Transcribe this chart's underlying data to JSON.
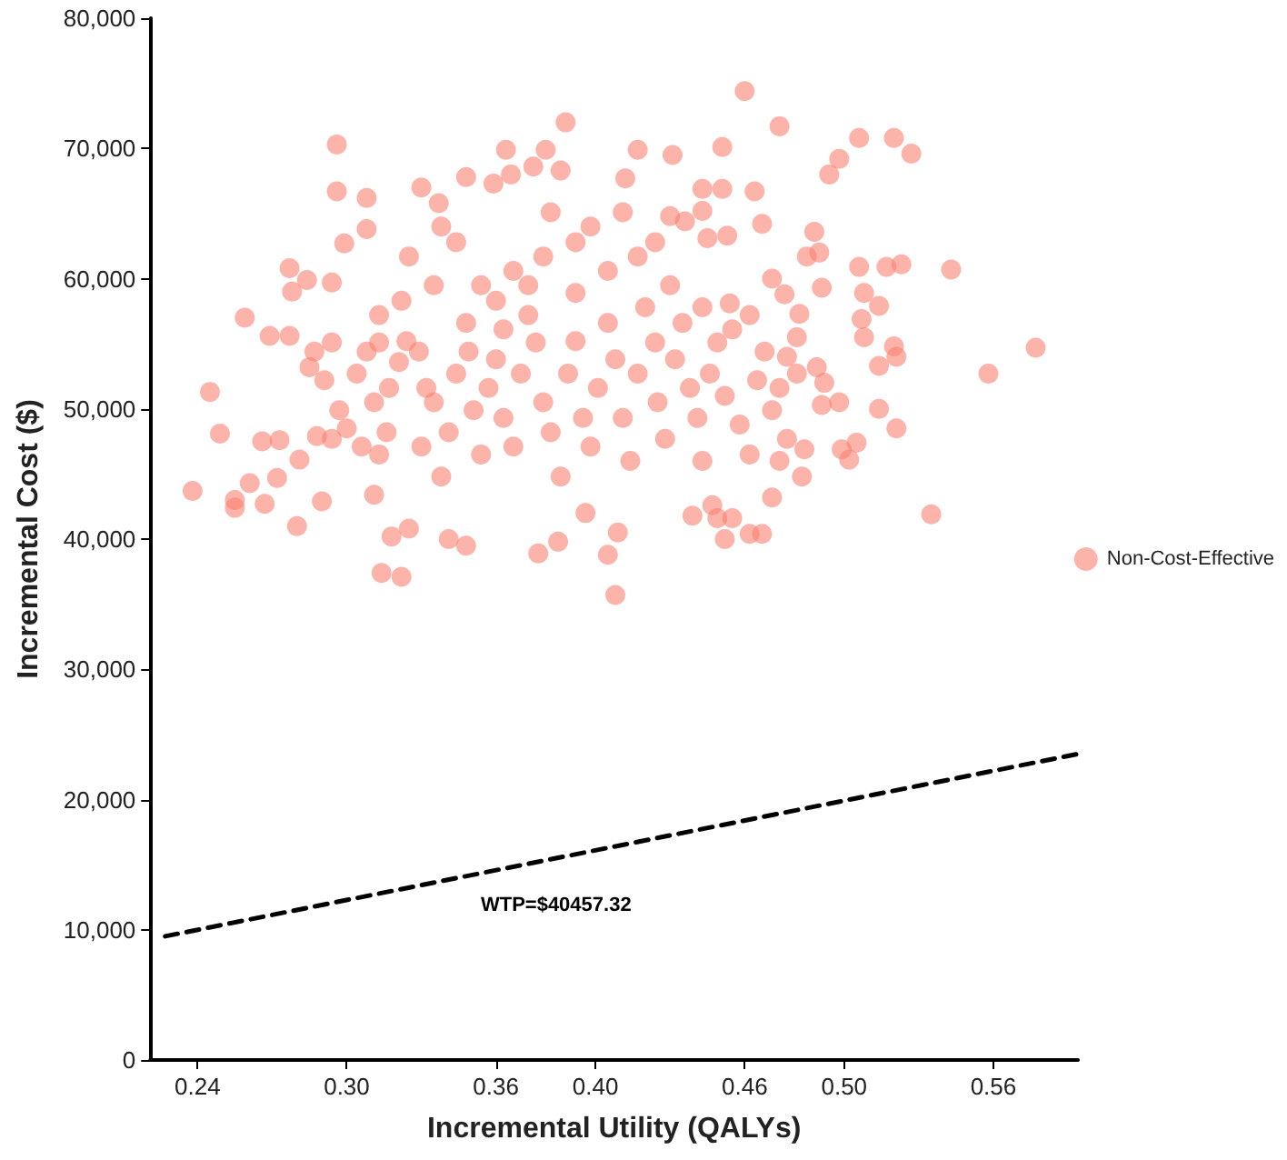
{
  "chart_data": {
    "type": "scatter",
    "xlabel": "Incremental Utility (QALYs)",
    "ylabel": "Incremental Cost ($)",
    "xlim": [
      0.221,
      0.594
    ],
    "ylim": [
      0,
      80000
    ],
    "xticks": [
      {
        "value": 0.24,
        "label": "0.24"
      },
      {
        "value": 0.3,
        "label": "0.30"
      },
      {
        "value": 0.36,
        "label": "0.36"
      },
      {
        "value": 0.4,
        "label": "0.40"
      },
      {
        "value": 0.46,
        "label": "0.46"
      },
      {
        "value": 0.5,
        "label": "0.50"
      },
      {
        "value": 0.56,
        "label": "0.56"
      }
    ],
    "yticks": [
      {
        "value": 0,
        "label": "0"
      },
      {
        "value": 10000,
        "label": "10,000"
      },
      {
        "value": 20000,
        "label": "20,000"
      },
      {
        "value": 30000,
        "label": "30,000"
      },
      {
        "value": 40000,
        "label": "40,000"
      },
      {
        "value": 50000,
        "label": "50,000"
      },
      {
        "value": 60000,
        "label": "60,000"
      },
      {
        "value": 70000,
        "label": "70,000"
      },
      {
        "value": 80000,
        "label": "80,000"
      }
    ],
    "grid": false,
    "legend": "right",
    "marker": "circle",
    "annotations": [
      "WTP=$40457.32"
    ],
    "series": [
      {
        "name": "Non-Cost-Effective",
        "color": "#fa8072",
        "x": [
          0.238,
          0.245,
          0.249,
          0.255,
          0.255,
          0.259,
          0.261,
          0.267,
          0.266,
          0.269,
          0.272,
          0.273,
          0.277,
          0.277,
          0.278,
          0.28,
          0.281,
          0.284,
          0.288,
          0.29,
          0.294,
          0.296,
          0.296,
          0.299,
          0.308,
          0.308,
          0.314,
          0.322,
          0.318,
          0.325,
          0.33,
          0.337,
          0.341,
          0.348,
          0.348,
          0.359,
          0.364,
          0.366,
          0.375,
          0.38,
          0.386,
          0.388,
          0.377,
          0.385,
          0.396,
          0.405,
          0.408,
          0.409,
          0.412,
          0.417,
          0.431,
          0.451,
          0.46,
          0.474,
          0.464,
          0.494,
          0.498,
          0.506,
          0.52,
          0.527,
          0.543,
          0.523,
          0.517,
          0.506,
          0.508,
          0.514,
          0.507,
          0.508,
          0.52,
          0.521,
          0.514,
          0.514,
          0.521,
          0.505,
          0.502,
          0.499,
          0.535,
          0.558,
          0.577,
          0.491,
          0.488,
          0.49,
          0.485,
          0.476,
          0.467,
          0.454,
          0.462,
          0.467,
          0.452,
          0.439,
          0.449,
          0.447,
          0.455,
          0.474,
          0.471,
          0.483,
          0.484,
          0.491,
          0.498,
          0.489,
          0.492,
          0.482,
          0.481,
          0.477,
          0.451,
          0.443,
          0.443,
          0.436,
          0.43,
          0.445,
          0.453,
          0.287,
          0.294,
          0.285,
          0.291,
          0.297,
          0.294,
          0.3,
          0.304,
          0.308,
          0.313,
          0.311,
          0.306,
          0.313,
          0.311,
          0.316,
          0.317,
          0.321,
          0.324,
          0.329,
          0.332,
          0.33,
          0.335,
          0.338,
          0.341,
          0.344,
          0.348,
          0.349,
          0.351,
          0.354,
          0.357,
          0.36,
          0.363,
          0.363,
          0.367,
          0.37,
          0.373,
          0.376,
          0.379,
          0.382,
          0.386,
          0.389,
          0.392,
          0.392,
          0.395,
          0.398,
          0.401,
          0.405,
          0.408,
          0.411,
          0.414,
          0.417,
          0.42,
          0.424,
          0.425,
          0.428,
          0.432,
          0.435,
          0.438,
          0.441,
          0.443,
          0.446,
          0.449,
          0.452,
          0.455,
          0.458,
          0.462,
          0.465,
          0.468,
          0.471,
          0.474,
          0.477,
          0.481,
          0.354,
          0.367,
          0.379,
          0.392,
          0.405,
          0.417,
          0.43,
          0.344,
          0.335,
          0.322,
          0.313,
          0.36,
          0.373,
          0.398,
          0.411,
          0.424,
          0.382,
          0.338,
          0.325,
          0.443,
          0.462,
          0.471
        ],
        "values": [
          43700,
          51300,
          48100,
          43000,
          42400,
          57000,
          44300,
          42700,
          47500,
          55600,
          44700,
          47600,
          55600,
          60800,
          59000,
          41000,
          46100,
          59900,
          47900,
          42900,
          59700,
          66700,
          70300,
          62700,
          66200,
          63800,
          37400,
          37100,
          40200,
          40800,
          67000,
          65800,
          40000,
          39500,
          67800,
          67300,
          69900,
          68000,
          68600,
          69900,
          68300,
          72000,
          38900,
          39800,
          42000,
          38800,
          35700,
          40500,
          67700,
          69900,
          69500,
          70100,
          74400,
          71700,
          66700,
          68000,
          69200,
          70800,
          70800,
          69600,
          60700,
          61100,
          60900,
          60900,
          58900,
          57900,
          56900,
          55500,
          54800,
          54000,
          53300,
          50000,
          48500,
          47400,
          46100,
          46900,
          41900,
          52700,
          54700,
          59300,
          63600,
          62000,
          61700,
          58800,
          64200,
          58100,
          40400,
          40400,
          40000,
          41800,
          41600,
          42600,
          41600,
          46000,
          43200,
          44800,
          46900,
          50300,
          50500,
          53200,
          52000,
          57300,
          55500,
          54000,
          66900,
          66900,
          65200,
          64400,
          64800,
          63100,
          63300,
          54400,
          55100,
          53200,
          52200,
          49900,
          47700,
          48500,
          52700,
          54400,
          55100,
          50500,
          47100,
          46500,
          43400,
          48200,
          51600,
          53600,
          55200,
          54400,
          51600,
          47100,
          50500,
          44800,
          48200,
          52700,
          56600,
          54400,
          49900,
          46500,
          51600,
          53800,
          56100,
          49300,
          47100,
          52700,
          57200,
          55100,
          50500,
          48200,
          44800,
          52700,
          55200,
          58900,
          49300,
          47100,
          51600,
          56600,
          53800,
          49300,
          46000,
          52700,
          57800,
          55100,
          50500,
          47700,
          53800,
          56600,
          51600,
          49300,
          46000,
          52700,
          55100,
          51000,
          56100,
          48800,
          46500,
          52200,
          54400,
          49900,
          51600,
          47700,
          52700,
          59500,
          60600,
          61700,
          62800,
          60600,
          61700,
          59500,
          62800,
          59500,
          58300,
          57200,
          58300,
          59500,
          64000,
          65100,
          62800,
          65100,
          64000,
          61700,
          57800,
          57200,
          60000
        ]
      },
      {
        "type": "line",
        "color": "#000000",
        "line_style": "dashed",
        "marker": "none",
        "x": [
          0.227,
          0.594
        ],
        "values": [
          9500,
          23500
        ]
      }
    ]
  }
}
